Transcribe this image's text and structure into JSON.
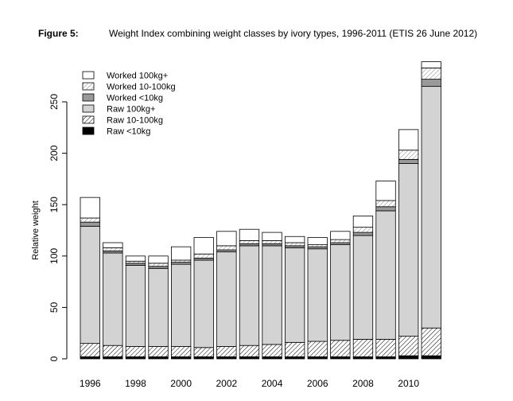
{
  "figure": {
    "label": "Figure 5:",
    "caption": "Weight Index combining weight classes by ivory types, 1996-2011 (ETIS 26 June 2012)"
  },
  "chart_data": {
    "type": "bar",
    "stacked": true,
    "ylabel": "Relative weight",
    "ylim": [
      0,
      290
    ],
    "yticks": [
      0,
      50,
      100,
      150,
      200,
      250
    ],
    "categories": [
      "1996",
      "1997",
      "1998",
      "1999",
      "2000",
      "2001",
      "2002",
      "2003",
      "2004",
      "2005",
      "2006",
      "2007",
      "2008",
      "2009",
      "2010",
      "2011"
    ],
    "xtick_labels": [
      "1996",
      "1998",
      "2000",
      "2002",
      "2004",
      "2006",
      "2008",
      "2010"
    ],
    "grid": false,
    "legend": {
      "placement": "top-left",
      "order": [
        "Worked 100kg+",
        "Worked 10-100kg",
        "Worked <10kg",
        "Raw 100kg+",
        "Raw 10-100kg",
        "Raw <10kg"
      ]
    },
    "series": [
      {
        "name": "Raw <10kg",
        "fill": "#000000",
        "pattern": "solid",
        "values": [
          2,
          2,
          2,
          2,
          2,
          2,
          2,
          2,
          2,
          2,
          2,
          2,
          2,
          2,
          3,
          3
        ]
      },
      {
        "name": "Raw 10-100kg",
        "fill": "#ffffff",
        "pattern": "hatch",
        "values": [
          13,
          11,
          10,
          10,
          10,
          9,
          10,
          11,
          12,
          14,
          15,
          16,
          17,
          17,
          19,
          27
        ]
      },
      {
        "name": "Raw 100kg+",
        "fill": "#d3d3d3",
        "pattern": "solid",
        "values": [
          114,
          90,
          79,
          76,
          80,
          85,
          92,
          97,
          96,
          92,
          90,
          93,
          101,
          125,
          168,
          235
        ]
      },
      {
        "name": "Worked <10kg",
        "fill": "#999999",
        "pattern": "solid",
        "values": [
          4,
          2,
          2,
          2,
          2,
          2,
          2,
          2,
          2,
          2,
          2,
          2,
          3,
          4,
          4,
          7
        ]
      },
      {
        "name": "Worked 10-100kg",
        "fill": "#ffffff",
        "pattern": "hatch-light",
        "values": [
          4,
          3,
          2,
          3,
          2,
          4,
          4,
          3,
          3,
          3,
          2,
          3,
          5,
          6,
          9,
          11
        ]
      },
      {
        "name": "Worked 100kg+",
        "fill": "#ffffff",
        "pattern": "solid",
        "values": [
          20,
          5,
          5,
          7,
          13,
          16,
          14,
          11,
          8,
          6,
          7,
          8,
          11,
          19,
          20,
          6
        ]
      }
    ]
  }
}
